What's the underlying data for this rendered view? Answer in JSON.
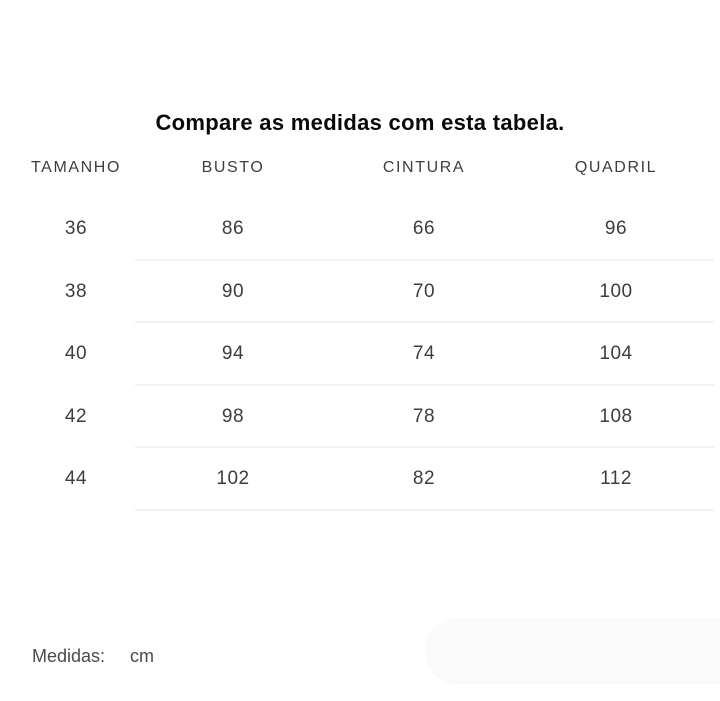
{
  "chart_data": {
    "type": "table",
    "title": "Compare as medidas com esta tabela.",
    "columns": [
      "TAMANHO",
      "BUSTO",
      "CINTURA",
      "QUADRIL"
    ],
    "rows": [
      [
        36,
        86,
        66,
        96
      ],
      [
        38,
        90,
        70,
        100
      ],
      [
        40,
        94,
        74,
        104
      ],
      [
        42,
        98,
        78,
        108
      ],
      [
        44,
        102,
        82,
        112
      ]
    ]
  },
  "footer": {
    "label": "Medidas:",
    "unit": "cm"
  },
  "colors": {
    "background": "#ffffff",
    "title_text": "#0a0a0a",
    "header_text": "#3e3e3e",
    "cell_text": "#3d3d3d",
    "divider": "#f2f2f2",
    "footer_text": "#4a4a4a",
    "pill_background": "#fafafa"
  }
}
